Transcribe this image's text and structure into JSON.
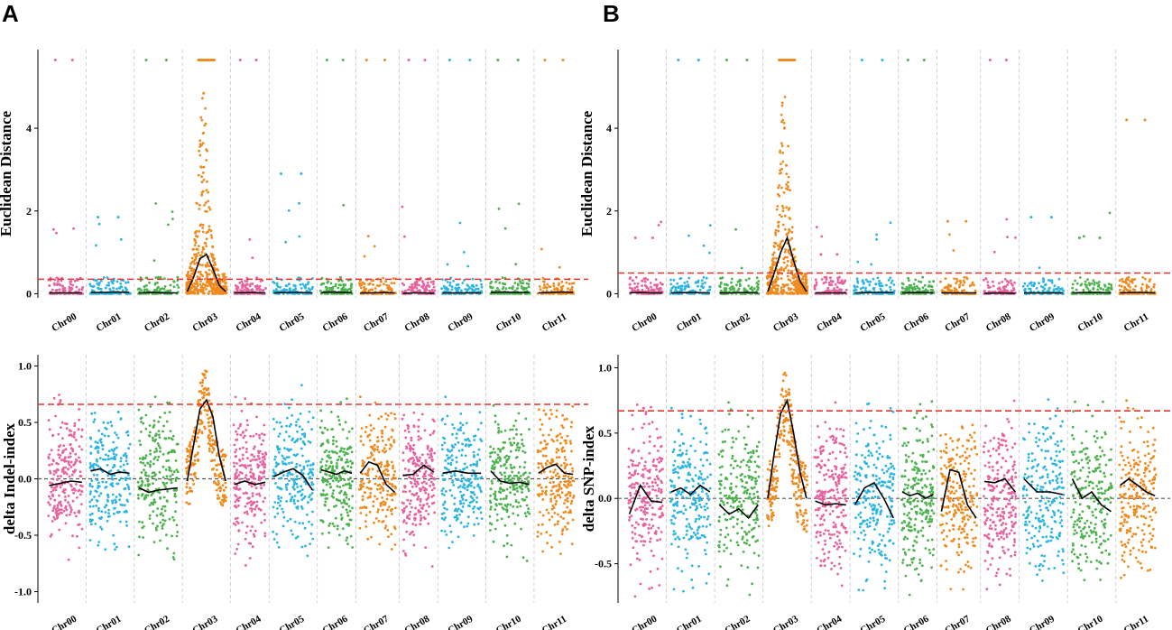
{
  "figure": {
    "panel_labels": [
      "A",
      "B"
    ],
    "colors": {
      "pink": "#e8629f",
      "blue": "#2cb5e2",
      "green": "#4db34f",
      "orange": "#ef8a1e",
      "threshold": "#e5322d",
      "fit": "#000000",
      "chrom_separator": "#c8c8c8",
      "zero_line": "#555555"
    }
  },
  "chart_data": [
    {
      "id": "A-top",
      "panel": "A",
      "type": "scatter",
      "ylabel": "Euclidean Distance",
      "ylim": [
        -0.1,
        5.9
      ],
      "yticks": [
        0,
        2,
        4
      ],
      "threshold": 0.35,
      "zero_line": false,
      "show_xlabels": true,
      "categories": [
        "Chr00",
        "Chr01",
        "Chr02",
        "Chr03",
        "Chr04",
        "Chr05",
        "Chr06",
        "Chr07",
        "Chr08",
        "Chr09",
        "Chr10",
        "Chr11"
      ],
      "point_colors": [
        "pink",
        "blue",
        "green",
        "orange",
        "pink",
        "blue",
        "green",
        "orange",
        "pink",
        "blue",
        "green",
        "orange"
      ],
      "approx_max_per_chr": [
        5.65,
        1.85,
        5.65,
        5.65,
        5.65,
        2.9,
        5.65,
        5.65,
        5.65,
        5.65,
        5.65,
        5.65
      ],
      "fit_series": [
        [
          0.02,
          0.02,
          0.02,
          0.02
        ],
        [
          0.03,
          0.03,
          0.04,
          0.03
        ],
        [
          0.02,
          0.03,
          0.02,
          0.02
        ],
        [
          0.05,
          0.4,
          0.85,
          0.95,
          0.6,
          0.2,
          0.05
        ],
        [
          0.02,
          0.03,
          0.02
        ],
        [
          0.02,
          0.03,
          0.03,
          0.02
        ],
        [
          0.03,
          0.04,
          0.03,
          0.03
        ],
        [
          0.02,
          0.02,
          0.03,
          0.02
        ],
        [
          0.01,
          0.02,
          0.02,
          0.01
        ],
        [
          0.02,
          0.02,
          0.02
        ],
        [
          0.03,
          0.04,
          0.03,
          0.03
        ],
        [
          0.02,
          0.03,
          0.04,
          0.03
        ]
      ]
    },
    {
      "id": "B-top",
      "panel": "B",
      "type": "scatter",
      "ylabel": "Euclidean Distance",
      "ylim": [
        -0.1,
        5.9
      ],
      "yticks": [
        0,
        2,
        4
      ],
      "threshold": 0.5,
      "zero_line": false,
      "show_xlabels": true,
      "categories": [
        "Chr00",
        "Chr01",
        "Chr02",
        "Chr03",
        "Chr04",
        "Chr05",
        "Chr06",
        "Chr07",
        "Chr08",
        "Chr09",
        "Chr10",
        "Chr11"
      ],
      "point_colors": [
        "pink",
        "blue",
        "green",
        "orange",
        "pink",
        "blue",
        "green",
        "orange",
        "pink",
        "blue",
        "green",
        "orange"
      ],
      "approx_max_per_chr": [
        1.35,
        5.65,
        5.65,
        5.65,
        0.95,
        5.65,
        5.65,
        1.75,
        5.65,
        1.85,
        1.35,
        4.2
      ],
      "fit_series": [
        [
          0.02,
          0.03,
          0.02,
          0.02
        ],
        [
          0.02,
          0.03,
          0.02
        ],
        [
          0.02,
          0.02,
          0.03,
          0.02
        ],
        [
          0.05,
          0.5,
          1.0,
          1.35,
          0.8,
          0.3,
          0.05
        ],
        [
          0.02,
          0.02,
          0.02
        ],
        [
          0.02,
          0.03,
          0.03
        ],
        [
          0.02,
          0.03,
          0.02
        ],
        [
          0.02,
          0.02,
          0.02
        ],
        [
          0.01,
          0.02,
          0.01
        ],
        [
          0.02,
          0.02,
          0.02
        ],
        [
          0.02,
          0.03,
          0.03,
          0.02
        ],
        [
          0.02,
          0.03,
          0.03,
          0.02
        ]
      ]
    },
    {
      "id": "A-bottom",
      "panel": "A",
      "type": "scatter",
      "ylabel": "delta Indel-index",
      "ylim": [
        -1.1,
        1.1
      ],
      "yticks": [
        -1.0,
        -0.5,
        0.0,
        0.5,
        1.0
      ],
      "threshold": 0.66,
      "zero_line": true,
      "show_xlabels": true,
      "categories": [
        "Chr00",
        "Chr01",
        "Chr02",
        "Chr03",
        "Chr04",
        "Chr05",
        "Chr06",
        "Chr07",
        "Chr08",
        "Chr09",
        "Chr10",
        "Chr11"
      ],
      "point_colors": [
        "pink",
        "blue",
        "green",
        "orange",
        "pink",
        "blue",
        "green",
        "orange",
        "pink",
        "blue",
        "green",
        "orange"
      ],
      "fit_series": [
        [
          -0.06,
          -0.04,
          -0.02,
          -0.03
        ],
        [
          0.07,
          0.09,
          0.04,
          0.06,
          0.05
        ],
        [
          -0.08,
          -0.12,
          -0.1,
          -0.09,
          -0.08
        ],
        [
          -0.02,
          0.3,
          0.62,
          0.7,
          0.55,
          0.2,
          -0.02
        ],
        [
          -0.05,
          -0.02,
          -0.05,
          -0.03
        ],
        [
          0.02,
          0.06,
          0.09,
          0.03,
          -0.1
        ],
        [
          0.08,
          0.06,
          0.04,
          0.07,
          0.05
        ],
        [
          0.05,
          0.15,
          0.12,
          -0.05,
          -0.12
        ],
        [
          0.03,
          0.04,
          0.12,
          0.06
        ],
        [
          0.05,
          0.07,
          0.05,
          0.05
        ],
        [
          0.07,
          -0.02,
          -0.04,
          -0.03,
          -0.05
        ],
        [
          0.05,
          0.1,
          0.13,
          0.05,
          0.04
        ]
      ]
    },
    {
      "id": "B-bottom",
      "panel": "B",
      "type": "scatter",
      "ylabel": "delta SNP-index",
      "ylim": [
        -0.8,
        1.1
      ],
      "yticks": [
        -0.5,
        0.0,
        0.5,
        1.0
      ],
      "threshold": 0.67,
      "zero_line": true,
      "show_xlabels": true,
      "categories": [
        "Chr00",
        "Chr01",
        "Chr02",
        "Chr03",
        "Chr04",
        "Chr05",
        "Chr06",
        "Chr07",
        "Chr08",
        "Chr09",
        "Chr10",
        "Chr11"
      ],
      "point_colors": [
        "pink",
        "blue",
        "green",
        "orange",
        "pink",
        "blue",
        "green",
        "orange",
        "pink",
        "blue",
        "green",
        "orange"
      ],
      "fit_series": [
        [
          -0.12,
          0.1,
          -0.02,
          -0.03
        ],
        [
          0.05,
          0.08,
          0.03,
          0.1,
          0.05
        ],
        [
          -0.05,
          -0.12,
          -0.08,
          -0.15,
          -0.05
        ],
        [
          0.0,
          0.35,
          0.65,
          0.75,
          0.5,
          0.2,
          0.0
        ],
        [
          -0.02,
          -0.05,
          -0.04,
          -0.05
        ],
        [
          -0.05,
          0.08,
          0.12,
          0.0,
          -0.15
        ],
        [
          0.05,
          0.02,
          0.04,
          0.0,
          0.03
        ],
        [
          -0.1,
          0.22,
          0.2,
          -0.05,
          -0.15
        ],
        [
          0.13,
          0.12,
          0.15,
          0.05
        ],
        [
          0.15,
          0.05,
          0.05,
          0.03
        ],
        [
          0.15,
          0.0,
          0.05,
          -0.05,
          -0.1
        ],
        [
          0.1,
          0.15,
          0.1,
          0.05,
          0.02
        ]
      ]
    }
  ]
}
